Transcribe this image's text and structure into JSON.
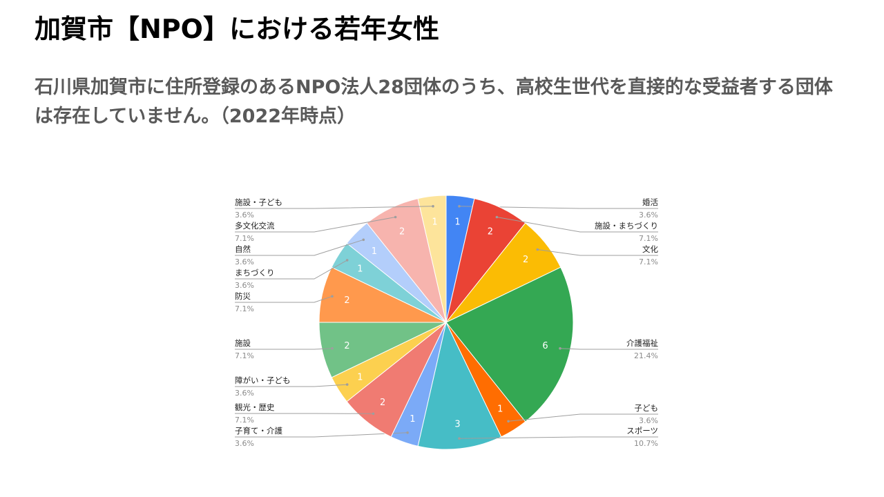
{
  "slide": {
    "title": "加賀市【NPO】における若年女性",
    "subtitle": "石川県加賀市に住所登録のあるNPO法人28団体のうち、高校生世代を直接的な受益者する団体は存在していません。（2022年時点）"
  },
  "chart_data": {
    "type": "pie",
    "title": "",
    "start": "top",
    "direction": "clockwise",
    "slices": [
      {
        "label": "婚活",
        "value": 1,
        "percent": "3.6%",
        "color": "#4285F4"
      },
      {
        "label": "施設・まちづくり",
        "value": 2,
        "percent": "7.1%",
        "color": "#EA4335"
      },
      {
        "label": "文化",
        "value": 2,
        "percent": "7.1%",
        "color": "#FBBC04"
      },
      {
        "label": "介護福祉",
        "value": 6,
        "percent": "21.4%",
        "color": "#34A853"
      },
      {
        "label": "子ども",
        "value": 1,
        "percent": "3.6%",
        "color": "#FF6D01"
      },
      {
        "label": "スポーツ",
        "value": 3,
        "percent": "10.7%",
        "color": "#46BDC6"
      },
      {
        "label": "子育て・介護",
        "value": 1,
        "percent": "3.6%",
        "color": "#7BAAF7"
      },
      {
        "label": "観光・歴史",
        "value": 2,
        "percent": "7.1%",
        "color": "#F07B72"
      },
      {
        "label": "障がい・子ども",
        "value": 1,
        "percent": "3.6%",
        "color": "#FCD04F"
      },
      {
        "label": "施設",
        "value": 2,
        "percent": "7.1%",
        "color": "#71C287"
      },
      {
        "label": "防災",
        "value": 2,
        "percent": "7.1%",
        "color": "#FF994D"
      },
      {
        "label": "まちづくり",
        "value": 1,
        "percent": "3.6%",
        "color": "#7ED1D7"
      },
      {
        "label": "自然",
        "value": 1,
        "percent": "3.6%",
        "color": "#B3CEFB"
      },
      {
        "label": "多文化交流",
        "value": 2,
        "percent": "7.1%",
        "color": "#F7B4AE"
      },
      {
        "label": "施設・子ども",
        "value": 1,
        "percent": "3.6%",
        "color": "#FDE49B"
      }
    ]
  }
}
